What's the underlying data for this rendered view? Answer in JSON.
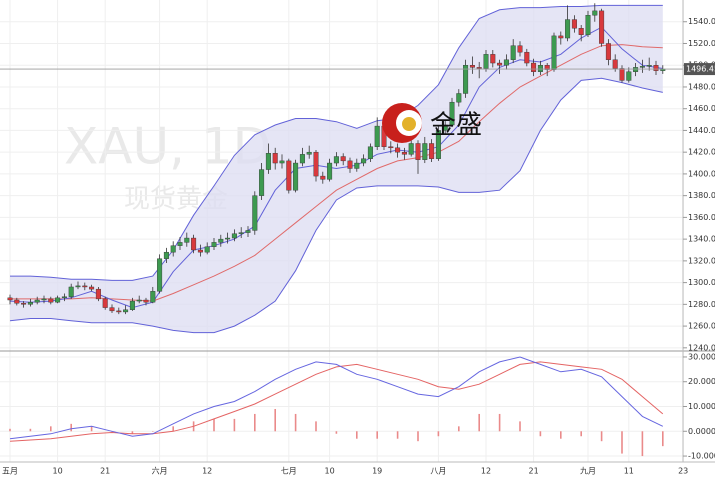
{
  "chart_data": {
    "type": "candlestick",
    "watermark": "XAU, 1D",
    "watermark_subtitle": "现货黄金",
    "logo_text": "金盛",
    "categories": [
      "五月",
      null,
      null,
      null,
      null,
      null,
      null,
      "10",
      null,
      null,
      null,
      null,
      null,
      null,
      "21",
      null,
      null,
      null,
      null,
      null,
      null,
      null,
      "六月",
      null,
      null,
      null,
      null,
      null,
      null,
      "12",
      null,
      null,
      null,
      null,
      null,
      null,
      null,
      null,
      null,
      null,
      null,
      "七月",
      null,
      null,
      null,
      null,
      null,
      "10",
      null,
      null,
      null,
      null,
      null,
      null,
      "19",
      null,
      null,
      null,
      null,
      null,
      null,
      null,
      null,
      "八月",
      null,
      null,
      null,
      null,
      null,
      null,
      "12",
      null,
      null,
      null,
      null,
      null,
      null,
      "21",
      null,
      null,
      null,
      null,
      null,
      null,
      null,
      "九月",
      null,
      null,
      null,
      null,
      null,
      "11",
      null,
      null,
      null,
      null,
      null,
      null,
      null,
      "23"
    ],
    "ohlc": [
      [
        1286,
        1289,
        1280,
        1284
      ],
      [
        1284,
        1286,
        1279,
        1281
      ],
      [
        1281,
        1283,
        1277,
        1280
      ],
      [
        1280,
        1285,
        1278,
        1282
      ],
      [
        1282,
        1287,
        1280,
        1284
      ],
      [
        1284,
        1288,
        1281,
        1285
      ],
      [
        1285,
        1287,
        1280,
        1282
      ],
      [
        1282,
        1288,
        1281,
        1286
      ],
      [
        1286,
        1290,
        1283,
        1287
      ],
      [
        1287,
        1299,
        1285,
        1296
      ],
      [
        1296,
        1301,
        1294,
        1297
      ],
      [
        1297,
        1300,
        1293,
        1296
      ],
      [
        1296,
        1298,
        1292,
        1294
      ],
      [
        1294,
        1296,
        1283,
        1285
      ],
      [
        1285,
        1287,
        1275,
        1277
      ],
      [
        1277,
        1280,
        1272,
        1274
      ],
      [
        1274,
        1277,
        1271,
        1273
      ],
      [
        1273,
        1279,
        1271,
        1275
      ],
      [
        1275,
        1286,
        1274,
        1283
      ],
      [
        1283,
        1288,
        1281,
        1284
      ],
      [
        1284,
        1286,
        1279,
        1282
      ],
      [
        1282,
        1296,
        1281,
        1292
      ],
      [
        1292,
        1326,
        1290,
        1322
      ],
      [
        1322,
        1332,
        1318,
        1328
      ],
      [
        1328,
        1338,
        1324,
        1334
      ],
      [
        1334,
        1342,
        1330,
        1337
      ],
      [
        1337,
        1346,
        1333,
        1341
      ],
      [
        1341,
        1344,
        1327,
        1330
      ],
      [
        1330,
        1335,
        1324,
        1328
      ],
      [
        1328,
        1337,
        1326,
        1333
      ],
      [
        1333,
        1341,
        1330,
        1337
      ],
      [
        1337,
        1344,
        1333,
        1340
      ],
      [
        1340,
        1346,
        1336,
        1341
      ],
      [
        1341,
        1349,
        1338,
        1345
      ],
      [
        1345,
        1351,
        1341,
        1346
      ],
      [
        1346,
        1352,
        1342,
        1348
      ],
      [
        1348,
        1384,
        1344,
        1380
      ],
      [
        1380,
        1410,
        1376,
        1404
      ],
      [
        1404,
        1428,
        1400,
        1419
      ],
      [
        1419,
        1424,
        1404,
        1410
      ],
      [
        1410,
        1418,
        1405,
        1412
      ],
      [
        1412,
        1414,
        1382,
        1385
      ],
      [
        1385,
        1413,
        1383,
        1410
      ],
      [
        1410,
        1424,
        1407,
        1418
      ],
      [
        1418,
        1426,
        1414,
        1420
      ],
      [
        1420,
        1422,
        1393,
        1398
      ],
      [
        1398,
        1402,
        1391,
        1395
      ],
      [
        1395,
        1414,
        1393,
        1410
      ],
      [
        1410,
        1420,
        1407,
        1416
      ],
      [
        1416,
        1419,
        1408,
        1412
      ],
      [
        1412,
        1415,
        1401,
        1405
      ],
      [
        1405,
        1414,
        1402,
        1410
      ],
      [
        1410,
        1418,
        1407,
        1414
      ],
      [
        1414,
        1428,
        1411,
        1425
      ],
      [
        1425,
        1452,
        1422,
        1444
      ],
      [
        1444,
        1447,
        1422,
        1425
      ],
      [
        1425,
        1430,
        1419,
        1424
      ],
      [
        1424,
        1428,
        1415,
        1420
      ],
      [
        1420,
        1424,
        1413,
        1418
      ],
      [
        1418,
        1432,
        1416,
        1428
      ],
      [
        1428,
        1431,
        1400,
        1413
      ],
      [
        1413,
        1434,
        1410,
        1428
      ],
      [
        1428,
        1432,
        1411,
        1414
      ],
      [
        1414,
        1444,
        1412,
        1440
      ],
      [
        1440,
        1449,
        1436,
        1445
      ],
      [
        1445,
        1470,
        1443,
        1466
      ],
      [
        1466,
        1478,
        1462,
        1474
      ],
      [
        1474,
        1505,
        1470,
        1500
      ],
      [
        1500,
        1508,
        1492,
        1498
      ],
      [
        1498,
        1503,
        1488,
        1497
      ],
      [
        1497,
        1514,
        1494,
        1510
      ],
      [
        1510,
        1514,
        1498,
        1502
      ],
      [
        1502,
        1505,
        1492,
        1500
      ],
      [
        1500,
        1510,
        1496,
        1505
      ],
      [
        1505,
        1524,
        1502,
        1518
      ],
      [
        1518,
        1522,
        1508,
        1512
      ],
      [
        1512,
        1515,
        1499,
        1502
      ],
      [
        1502,
        1506,
        1490,
        1494
      ],
      [
        1494,
        1504,
        1491,
        1500
      ],
      [
        1500,
        1502,
        1490,
        1496
      ],
      [
        1496,
        1530,
        1494,
        1527
      ],
      [
        1527,
        1531,
        1519,
        1525
      ],
      [
        1525,
        1555,
        1522,
        1542
      ],
      [
        1542,
        1546,
        1530,
        1534
      ],
      [
        1534,
        1537,
        1522,
        1528
      ],
      [
        1528,
        1550,
        1526,
        1546
      ],
      [
        1546,
        1557,
        1540,
        1550
      ],
      [
        1550,
        1552,
        1517,
        1520
      ],
      [
        1520,
        1524,
        1500,
        1505
      ],
      [
        1505,
        1510,
        1494,
        1497
      ],
      [
        1497,
        1500,
        1484,
        1486
      ],
      [
        1486,
        1498,
        1484,
        1494
      ],
      [
        1494,
        1502,
        1490,
        1498
      ],
      [
        1498,
        1505,
        1493,
        1499
      ],
      [
        1499,
        1507,
        1495,
        1500
      ],
      [
        1500,
        1504,
        1491,
        1495
      ],
      [
        1495,
        1500,
        1492,
        1496.45
      ],
      null,
      null,
      null
    ],
    "up_color": "#3d9a50",
    "down_color": "#d8393d",
    "ylim": [
      1238,
      1560
    ],
    "yticks": [
      {
        "value": 1240,
        "label": "1240.00"
      },
      {
        "value": 1260,
        "label": "1260.00"
      },
      {
        "value": 1280,
        "label": "1280.00"
      },
      {
        "value": 1300,
        "label": "1300.00"
      },
      {
        "value": 1320,
        "label": "1320.00"
      },
      {
        "value": 1340,
        "label": "1340.00"
      },
      {
        "value": 1360,
        "label": "1360.00"
      },
      {
        "value": 1380,
        "label": "1380.00"
      },
      {
        "value": 1400,
        "label": "1400.00"
      },
      {
        "value": 1420,
        "label": "1420.00"
      },
      {
        "value": 1440,
        "label": "1440.00"
      },
      {
        "value": 1460,
        "label": "1460.00"
      },
      {
        "value": 1480,
        "label": "1480.00"
      },
      {
        "value": 1500,
        "label": "1500.00"
      },
      {
        "value": 1520,
        "label": "1520.00"
      },
      {
        "value": 1540,
        "label": "1540.00"
      }
    ],
    "grid": true,
    "overlay_x": [
      0,
      3,
      6,
      9,
      12,
      15,
      18,
      21,
      24,
      27,
      30,
      33,
      36,
      39,
      42,
      45,
      48,
      51,
      54,
      57,
      60,
      63,
      66,
      69,
      72,
      75,
      78,
      81,
      84,
      87,
      90,
      93,
      96
    ],
    "bollinger": {
      "upper": [
        1306,
        1306,
        1305,
        1303,
        1303,
        1302,
        1302,
        1306,
        1330,
        1362,
        1389,
        1417,
        1436,
        1445,
        1451,
        1451,
        1448,
        1442,
        1449,
        1451,
        1463,
        1482,
        1516,
        1543,
        1551,
        1553,
        1553,
        1554,
        1554,
        1555,
        1555,
        1555,
        1555
      ],
      "middle": [
        1285,
        1285,
        1285,
        1285,
        1286,
        1285,
        1284,
        1283,
        1290,
        1298,
        1306,
        1315,
        1325,
        1340,
        1355,
        1370,
        1385,
        1395,
        1405,
        1412,
        1415,
        1420,
        1430,
        1448,
        1465,
        1480,
        1490,
        1500,
        1510,
        1518,
        1519,
        1517,
        1516
      ],
      "lower": [
        1265,
        1267,
        1267,
        1265,
        1263,
        1263,
        1263,
        1260,
        1256,
        1254,
        1254,
        1260,
        1270,
        1283,
        1311,
        1348,
        1376,
        1387,
        1389,
        1389,
        1389,
        1388,
        1383,
        1383,
        1385,
        1403,
        1440,
        1468,
        1486,
        1488,
        1484,
        1479,
        1475
      ],
      "band_color": "#dcdcf2",
      "line_color": "#6262d8",
      "middle_color": "#e06a6a"
    },
    "ma": {
      "values": [
        1283,
        1282,
        1283,
        1286,
        1292,
        1284,
        1277,
        1282,
        1310,
        1330,
        1334,
        1340,
        1352,
        1385,
        1405,
        1408,
        1405,
        1408,
        1418,
        1422,
        1420,
        1425,
        1445,
        1480,
        1498,
        1505,
        1503,
        1510,
        1525,
        1535,
        1515,
        1500,
        1497
      ],
      "color": "#6262d8"
    },
    "macd": {
      "ylim": [
        -12.4,
        32
      ],
      "yticks": [
        {
          "value": 30,
          "label": "30.0000"
        },
        {
          "value": 20,
          "label": "20.0000"
        },
        {
          "value": 10,
          "label": "10.0000"
        },
        {
          "value": 0,
          "label": "0.0000"
        },
        {
          "value": -10,
          "label": "-10.0000"
        }
      ],
      "dif": [
        -3,
        -2,
        -1,
        1,
        2,
        0,
        -2,
        -1,
        3,
        7,
        10,
        12,
        16,
        21,
        25,
        28,
        27,
        23,
        21,
        18,
        15,
        14,
        18,
        24,
        28,
        30,
        27,
        24,
        25,
        22,
        14,
        6,
        2
      ],
      "dea": [
        -4,
        -3.5,
        -3,
        -2,
        -1,
        -0.5,
        -1,
        -1,
        0,
        2,
        5,
        8,
        11,
        15,
        19,
        23,
        26,
        27,
        25,
        23,
        21,
        18,
        17,
        19,
        23,
        27,
        28,
        27,
        26,
        25,
        21,
        14,
        7
      ],
      "hist": [
        1,
        1,
        2,
        3,
        2,
        0,
        -1,
        0,
        2,
        4,
        5,
        5,
        7,
        9,
        7,
        4,
        -1,
        -3,
        -3,
        -3,
        -4,
        -2,
        2,
        7,
        7,
        4,
        -2,
        -3,
        -2,
        -4,
        -9,
        -10,
        -6
      ],
      "dif_color": "#6666e0",
      "dea_color": "#e46464",
      "hist_color": "#ea8a8a"
    }
  }
}
